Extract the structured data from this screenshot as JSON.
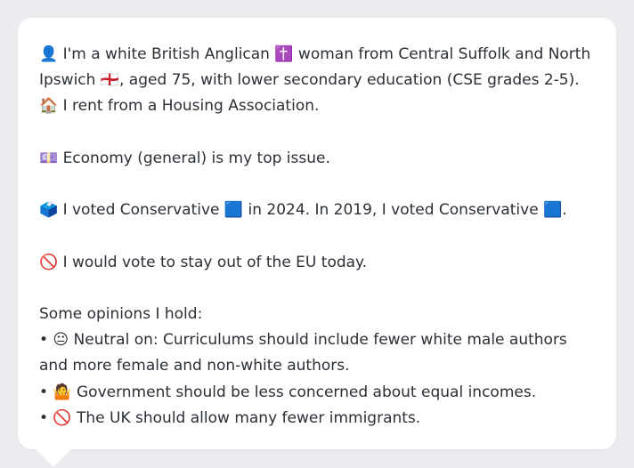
{
  "message": {
    "intro": "👤 I'm a white British Anglican ✝️ woman from Central Suffolk and North Ipswich 🏴󠁧󠁢󠁥󠁮󠁧󠁿, aged 75, with lower secondary education (CSE grades 2-5). 🏠 I rent from a Housing Association.",
    "top_issue": "💷 Economy (general) is my top issue.",
    "votes": "🗳️ I voted Conservative 🟦 in 2024. In 2019, I voted Conservative 🟦.",
    "eu": "🚫 I would vote to stay out of the EU today.",
    "opinions_heading": "Some opinions I hold:",
    "opinions": [
      "• 😐 Neutral on: Curriculums should include fewer white male authors and more female and non-white authors.",
      "• 🤷 Government should be less concerned about equal incomes.",
      "• 🚫 The UK should allow many fewer immigrants."
    ]
  }
}
